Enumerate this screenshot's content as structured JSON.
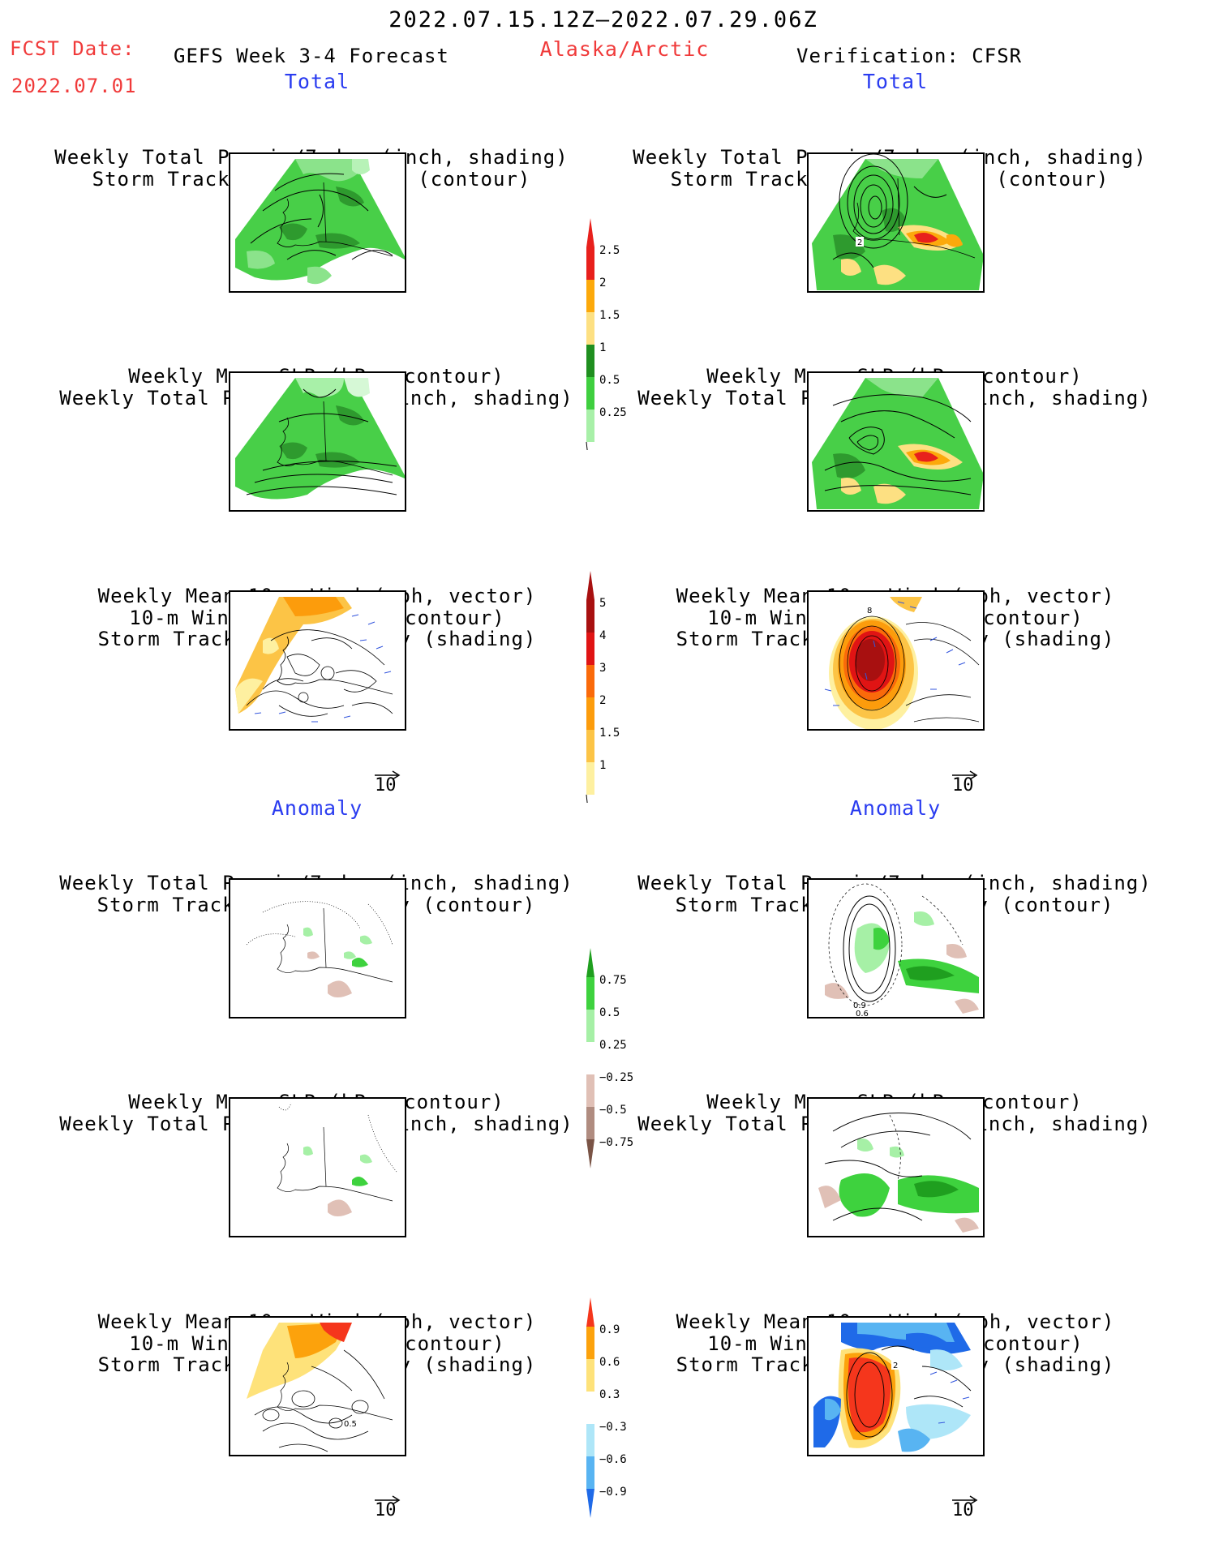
{
  "header": {
    "date_range": "2022.07.15.12Z–2022.07.29.06Z",
    "fcst_label": "FCST Date:",
    "fcst_date": "2022.07.01",
    "product": "GEFS Week 3-4 Forecast",
    "region": "Alaska/Arctic",
    "verification": "Verification: CFSR"
  },
  "sections": {
    "total_left": "Total",
    "total_right": "Total",
    "anomaly_left": "Anomaly",
    "anomaly_right": "Anomaly"
  },
  "titles": {
    "precip_storm": [
      "Weekly Total Precip/7-day (inch, shading)",
      "Storm Track Density/7-day (contour)"
    ],
    "slp_precip": [
      "Weekly Mean SLP (hPa, contour)",
      "Weekly Total Precip/7-day (inch, shading)"
    ],
    "wind_storm": [
      "Weekly Mean 10-m Wind (mph, vector)",
      "10-m Wind Speed (mph, contour)",
      "Storm Track Density/7-day (shading)"
    ]
  },
  "panel_labels": {
    "obs_total_precip_contour": "2",
    "obs_total_wind_contour": "8",
    "obs_anom_precip_contour_a": "0.9",
    "obs_anom_precip_contour_b": "0.6",
    "fcst_anom_wind_contour": "0.5",
    "obs_anom_wind_contour": "2"
  },
  "vector_reference": {
    "value": "10"
  },
  "colorbars": {
    "total_precip": {
      "labels": [
        "2.5",
        "2",
        "1.5",
        "1",
        "0.5",
        "0.25"
      ],
      "colors": [
        "#e8201c",
        "#fca90b",
        "#fde082",
        "#1f8f1f",
        "#3fcf3f",
        "#a8f0a8"
      ]
    },
    "total_storm": {
      "labels": [
        "5",
        "4",
        "3",
        "2",
        "1.5",
        "1"
      ],
      "colors": [
        "#a81010",
        "#e01414",
        "#fa6a0a",
        "#fc9c0c",
        "#fcc446",
        "#fef0a0"
      ]
    },
    "anom_precip": {
      "labels": [
        "0.75",
        "0.5",
        "0.25",
        "−0.25",
        "−0.5",
        "−0.75"
      ],
      "colors": [
        "#1f9f1f",
        "#3ed23e",
        "#a6f0a6",
        "#ffffff",
        "#e0c0b6",
        "#b08c80",
        "#7a5446"
      ]
    },
    "anom_storm": {
      "labels": [
        "0.9",
        "0.6",
        "0.3",
        "−0.3",
        "−0.6",
        "−0.9"
      ],
      "colors": [
        "#f5361c",
        "#fca20c",
        "#fee27a",
        "#ffffff",
        "#aee6f8",
        "#58b4f2",
        "#1f6ae8"
      ]
    }
  }
}
